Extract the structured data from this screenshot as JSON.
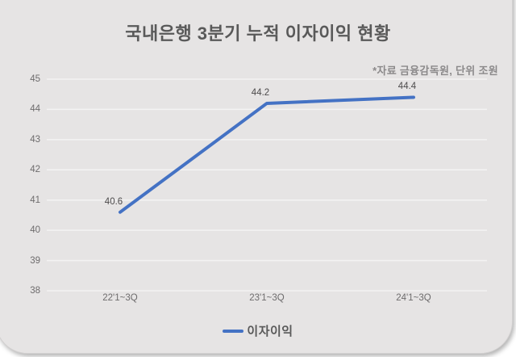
{
  "card": {
    "title": "국내은행 3분기 누적 이자이익 현황",
    "source_note": "*자료 금융감독원, 단위 조원"
  },
  "legend": {
    "label": "이자이익"
  },
  "colors": {
    "line": "#4472c4",
    "card_bg": "#e6e4e4",
    "gridline": "rgba(255,255,255,0.55)",
    "title_text": "#595959",
    "axis_text": "#6e6c6d",
    "data_label_text": "#4c4a4b",
    "note_text": "#8b898a"
  },
  "chart_data": {
    "type": "line",
    "title": "국내은행 3분기 누적 이자이익 현황",
    "annotation": "*자료 금융감독원, 단위 조원",
    "categories": [
      "22'1~3Q",
      "23'1~3Q",
      "24'1~3Q"
    ],
    "series": [
      {
        "name": "이자이익",
        "values": [
          40.6,
          44.2,
          44.4
        ]
      }
    ],
    "data_labels": [
      "40.6",
      "44.2",
      "44.4"
    ],
    "ylim": [
      38,
      45
    ],
    "yticks": [
      45,
      44,
      43,
      42,
      41,
      40,
      39,
      38
    ],
    "xlabel": "",
    "ylabel": "",
    "grid": "horizontal",
    "legend_position": "bottom",
    "unit": "조원"
  }
}
